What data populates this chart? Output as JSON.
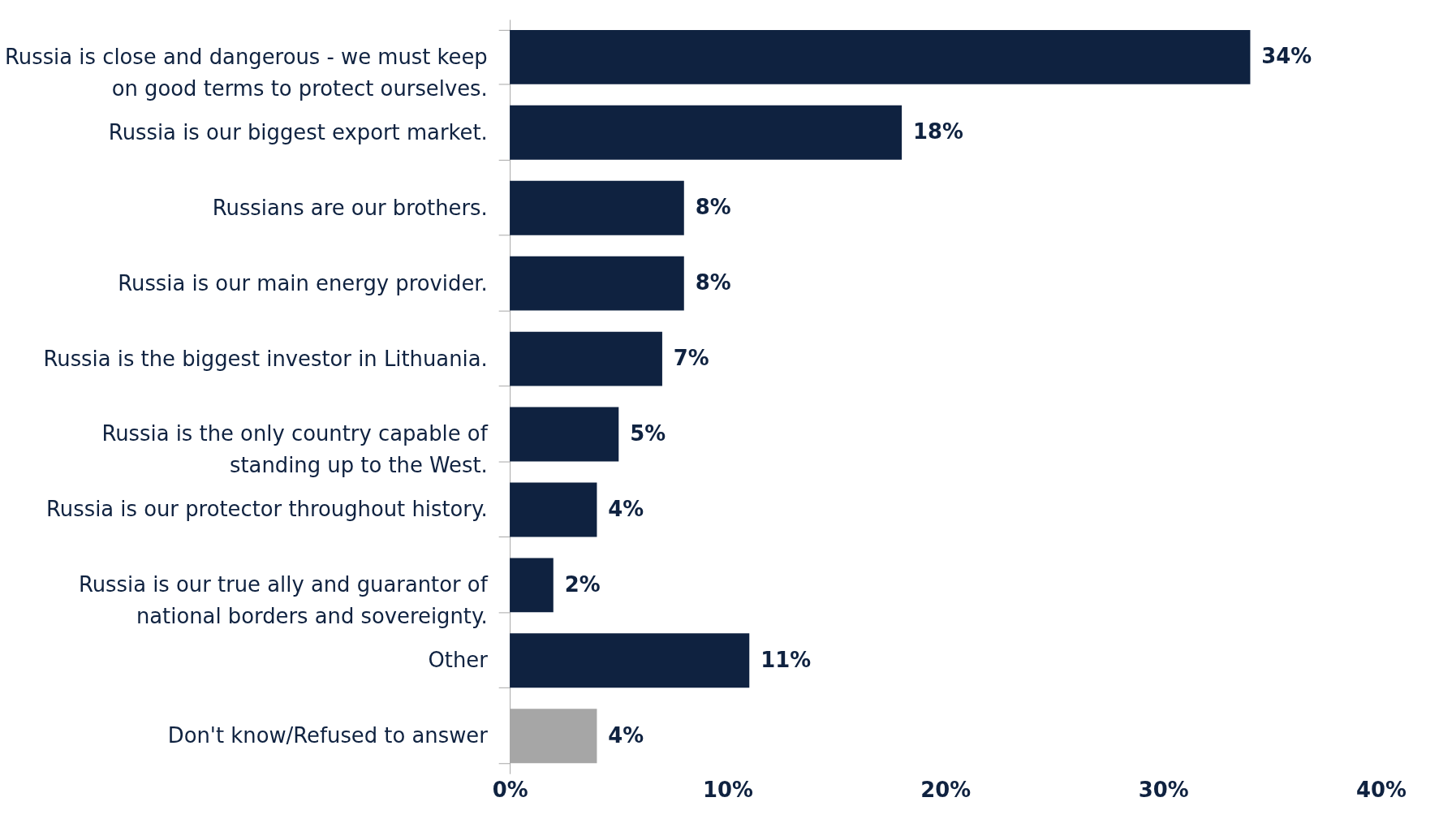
{
  "chart_data": {
    "type": "bar",
    "orientation": "horizontal",
    "categories": [
      "Russia is close and dangerous - we must keep on good terms to protect ourselves.",
      "Russia is our biggest export market.",
      "Russians are our brothers.",
      "Russia is our main energy provider.",
      "Russia is the biggest investor in Lithuania.",
      "Russia is the only country capable of standing up to the West.",
      "Russia is our protector throughout history.",
      "Russia is our true ally and guarantor of national borders and sovereignty.",
      "Other",
      "Don't know/Refused to answer"
    ],
    "values": [
      34,
      18,
      8,
      8,
      7,
      5,
      4,
      2,
      11,
      4
    ],
    "colors": [
      "#0f2240",
      "#0f2240",
      "#0f2240",
      "#0f2240",
      "#0f2240",
      "#0f2240",
      "#0f2240",
      "#0f2240",
      "#0f2240",
      "#a6a6a6"
    ],
    "value_labels": [
      "34%",
      "18%",
      "8%",
      "8%",
      "7%",
      "5%",
      "4%",
      "2%",
      "11%",
      "4%"
    ],
    "xlim": [
      0,
      40
    ],
    "xticks": [
      {
        "value": 0,
        "label": "0%"
      },
      {
        "value": 10,
        "label": "10%"
      },
      {
        "value": 20,
        "label": "20%"
      },
      {
        "value": 30,
        "label": "30%"
      },
      {
        "value": 40,
        "label": "40%"
      }
    ],
    "grid": false
  }
}
